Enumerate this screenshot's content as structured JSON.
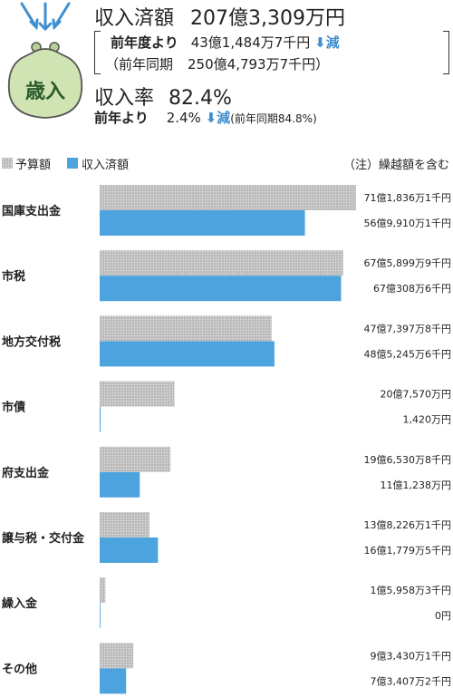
{
  "header": {
    "badge": "歳入",
    "revenue_label": "収入済額",
    "revenue_value": "207億3,309万円",
    "prev_label": "前年度より",
    "prev_value": "43億1,484万7千円",
    "prev_change": "減",
    "prev_period_label": "（前年同期",
    "prev_period_value": "250億4,793万7千円）",
    "rate_label": "収入率",
    "rate_value": "82.4%",
    "rate_prev_label": "前年より",
    "rate_prev_value": "2.4%",
    "rate_prev_change": "減",
    "rate_prev_period": "(前年同期84.8%)",
    "colors": {
      "accent": "#3f8fd0",
      "purse": "#cfe3b3",
      "purse_text": "#2a5a2a"
    }
  },
  "legend": {
    "budget_label": "予算額",
    "revenue_label": "収入済額",
    "note": "（注）繰越額を含む"
  },
  "chart_data": {
    "type": "bar",
    "orientation": "horizontal",
    "unit": "万円",
    "colors": {
      "予算額": "#bdbdbd",
      "収入済額": "#4da3de"
    },
    "categories": [
      "国庫支出金",
      "市税",
      "地方交付税",
      "市債",
      "府支出金",
      "譲与税・交付金",
      "繰入金",
      "その他"
    ],
    "series": [
      {
        "name": "予算額",
        "values": [
          711836.1,
          675899.9,
          477397.8,
          207570,
          196530.8,
          138226.1,
          15958.3,
          93430.1
        ],
        "labels": [
          "71億1,836万1千円",
          "67億5,899万9千円",
          "47億7,397万8千円",
          "20億7,570万円",
          "19億6,530万8千円",
          "13億8,226万1千円",
          "1億5,958万3千円",
          "9億3,430万1千円"
        ]
      },
      {
        "name": "収入済額",
        "values": [
          569910.1,
          670308.6,
          485245.6,
          1420,
          111238,
          161779.5,
          0,
          73407.2
        ],
        "labels": [
          "56億9,910万1千円",
          "67億308万6千円",
          "48億5,245万6千円",
          "1,420万円",
          "11億1,238万円",
          "16億1,779万5千円",
          "0円",
          "7億3,407万2千円"
        ]
      }
    ]
  }
}
